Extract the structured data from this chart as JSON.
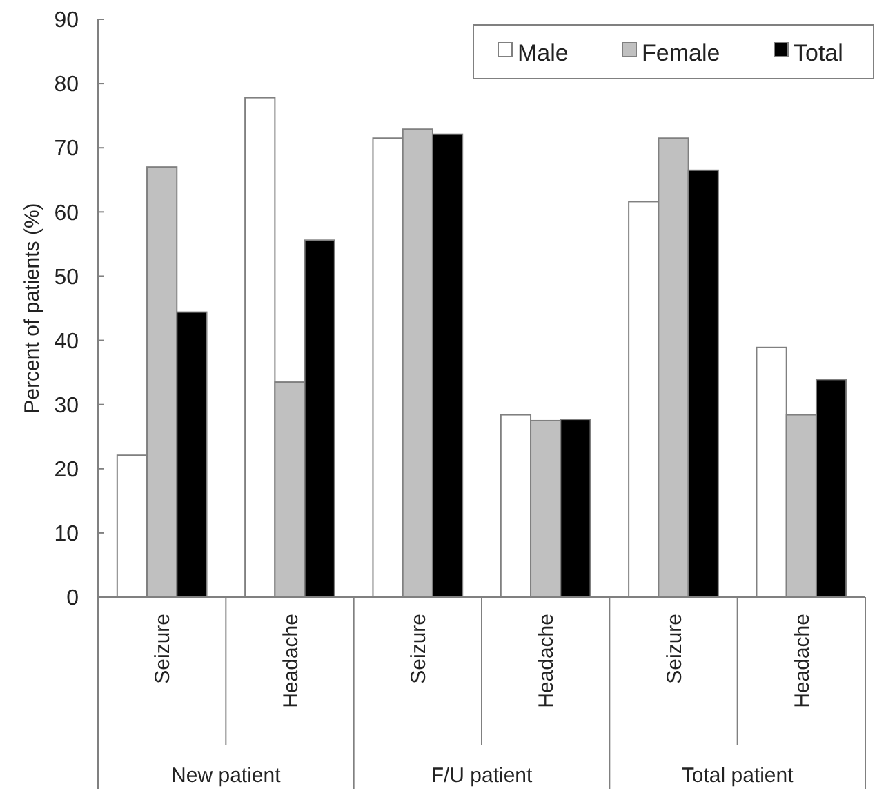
{
  "chart_data": {
    "type": "bar",
    "ylabel": "Percent of patients (%)",
    "categories": [
      "Seizure",
      "Headache",
      "Seizure",
      "Headache",
      "Seizure",
      "Headache"
    ],
    "annotations": [
      "New patient",
      "F/U patient",
      "Total patient"
    ],
    "series": [
      {
        "name": "Male",
        "color": "#ffffff",
        "values": [
          22.1,
          77.8,
          71.5,
          28.4,
          61.6,
          38.9
        ]
      },
      {
        "name": "Female",
        "color": "#c0c0c0",
        "values": [
          67.0,
          33.5,
          72.9,
          27.5,
          71.5,
          28.4
        ]
      },
      {
        "name": "Total",
        "color": "#000000",
        "values": [
          44.4,
          55.6,
          72.1,
          27.7,
          66.5,
          33.9
        ]
      }
    ],
    "ylim": [
      0,
      90
    ],
    "yticks": [
      0,
      10,
      20,
      30,
      40,
      50,
      60,
      70,
      80,
      90
    ],
    "grid": false,
    "legend": "top right"
  }
}
